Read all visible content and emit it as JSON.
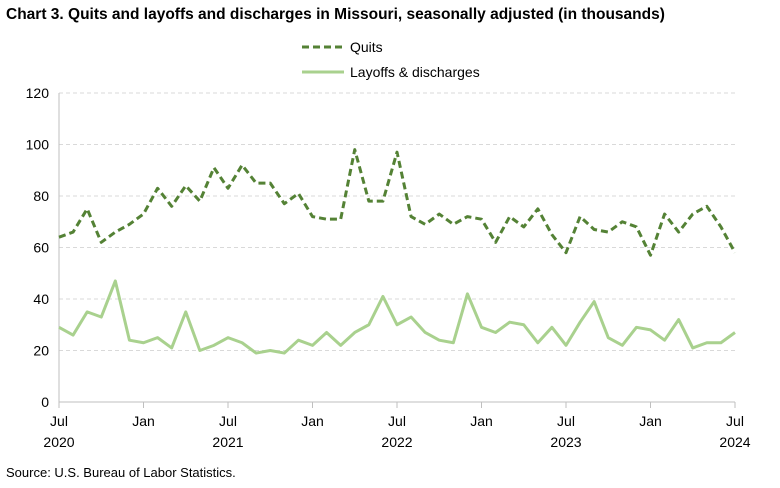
{
  "title": "Chart 3. Quits and layoffs and discharges in Missouri, seasonally adjusted (in thousands)",
  "source": "Source: U.S. Bureau of Labor Statistics.",
  "chart_data": {
    "type": "line",
    "title": "Chart 3. Quits and layoffs and discharges in Missouri, seasonally adjusted (in thousands)",
    "xlabel": "",
    "ylabel": "",
    "ylim": [
      0,
      120
    ],
    "yticks": [
      0,
      20,
      40,
      60,
      80,
      100,
      120
    ],
    "grid": "horizontal dashed",
    "legend_position": "top-center",
    "x": [
      "2020-07",
      "2020-08",
      "2020-09",
      "2020-10",
      "2020-11",
      "2020-12",
      "2021-01",
      "2021-02",
      "2021-03",
      "2021-04",
      "2021-05",
      "2021-06",
      "2021-07",
      "2021-08",
      "2021-09",
      "2021-10",
      "2021-11",
      "2021-12",
      "2022-01",
      "2022-02",
      "2022-03",
      "2022-04",
      "2022-05",
      "2022-06",
      "2022-07",
      "2022-08",
      "2022-09",
      "2022-10",
      "2022-11",
      "2022-12",
      "2023-01",
      "2023-02",
      "2023-03",
      "2023-04",
      "2023-05",
      "2023-06",
      "2023-07",
      "2023-08",
      "2023-09",
      "2023-10",
      "2023-11",
      "2023-12",
      "2024-01",
      "2024-02",
      "2024-03",
      "2024-04",
      "2024-05",
      "2024-06",
      "2024-07"
    ],
    "x_tick_labels": [
      {
        "month": "Jul",
        "year": "2020"
      },
      {
        "month": "Jan",
        "year": ""
      },
      {
        "month": "Jul",
        "year": "2021"
      },
      {
        "month": "Jan",
        "year": ""
      },
      {
        "month": "Jul",
        "year": "2022"
      },
      {
        "month": "Jan",
        "year": ""
      },
      {
        "month": "Jul",
        "year": "2023"
      },
      {
        "month": "Jan",
        "year": ""
      },
      {
        "month": "Jul",
        "year": "2024"
      }
    ],
    "series": [
      {
        "name": "Quits",
        "color": "#548235",
        "style": "dashed",
        "values": [
          64,
          66,
          75,
          62,
          66,
          69,
          73,
          83,
          76,
          84,
          78,
          91,
          83,
          92,
          85,
          85,
          77,
          81,
          72,
          71,
          71,
          98,
          78,
          78,
          97,
          72,
          69,
          73,
          69,
          72,
          71,
          62,
          72,
          68,
          75,
          65,
          58,
          72,
          67,
          66,
          70,
          68,
          57,
          73,
          66,
          73,
          76,
          68,
          58
        ]
      },
      {
        "name": "Layoffs & discharges",
        "color": "#a9d18e",
        "style": "solid",
        "values": [
          29,
          26,
          35,
          33,
          47,
          24,
          23,
          25,
          21,
          35,
          20,
          22,
          25,
          23,
          19,
          20,
          19,
          24,
          22,
          27,
          22,
          27,
          30,
          41,
          30,
          33,
          27,
          24,
          23,
          42,
          29,
          27,
          31,
          30,
          23,
          29,
          22,
          31,
          39,
          25,
          22,
          29,
          28,
          24,
          32,
          21,
          23,
          23,
          27
        ]
      }
    ]
  }
}
